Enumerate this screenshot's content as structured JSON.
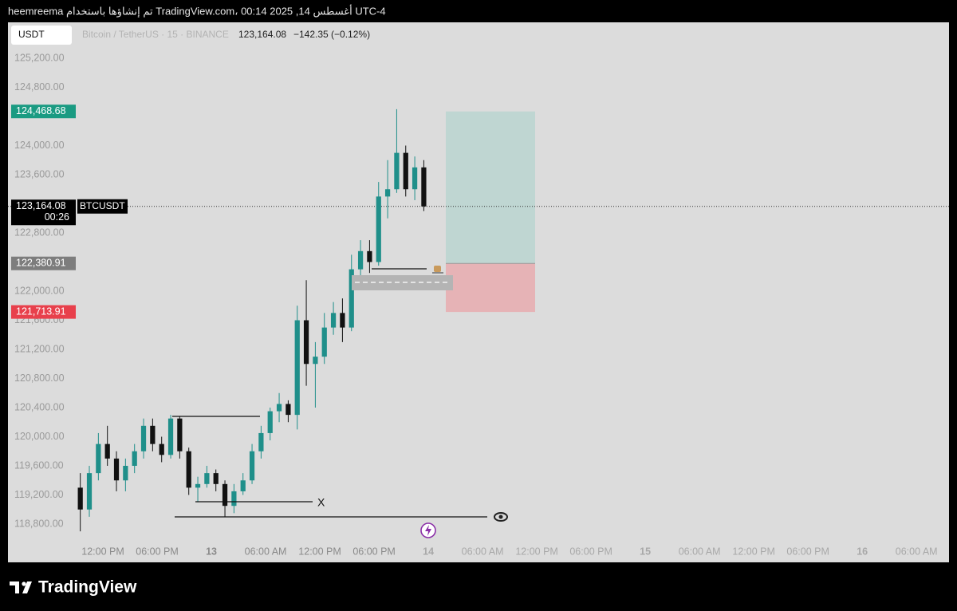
{
  "header": {
    "caption": "heemreema تم إنشاؤها باستخدام TradingView.com، أغسطس 14, 2025 00:14 UTC-4"
  },
  "chart_data": {
    "type": "candlestick",
    "symbol_box": "USDT",
    "legend_title": "Bitcoin / TetherUS · 15 · BINANCE",
    "legend_price": "123,164.08",
    "legend_change": "−142.35 (−0.12%)",
    "series_label": "BTCUSDT",
    "annotation": "X",
    "up_color": "#1f8f8a",
    "down_color": "#111111",
    "x": [
      9.5,
      10.5,
      11.5,
      12.5,
      13.5,
      14.5,
      15.5,
      16.5,
      17.5,
      18.5,
      19.5,
      20.5,
      21.5,
      22.5,
      23.5,
      24.5,
      25.5,
      26.5,
      27.5,
      28.5,
      29.5,
      30.5,
      31.5,
      32.5,
      33.5,
      34.5,
      35.5,
      36.5,
      37.5,
      38.5,
      39.5,
      40.5,
      41.5,
      42.5,
      43.5,
      44.5,
      45.5,
      46.5,
      47.5
    ],
    "open": [
      119300,
      119000,
      119500,
      119900,
      119700,
      119400,
      119600,
      119800,
      120150,
      119900,
      119750,
      120250,
      119800,
      119300,
      119350,
      119500,
      119350,
      119050,
      119250,
      119400,
      119800,
      120050,
      120350,
      120450,
      120300,
      121600,
      121000,
      121100,
      121500,
      121700,
      121500,
      122300,
      122550,
      122400,
      123300,
      123400,
      123900,
      123400,
      123700
    ],
    "high": [
      119500,
      119600,
      120050,
      120150,
      119800,
      119700,
      119900,
      120250,
      120250,
      120000,
      120300,
      120280,
      119850,
      119450,
      119600,
      119550,
      119400,
      119350,
      119500,
      119900,
      120150,
      120400,
      120600,
      120500,
      121800,
      122150,
      121300,
      121700,
      121850,
      121900,
      122500,
      122700,
      122700,
      123500,
      123800,
      124500,
      124000,
      123850,
      123800
    ],
    "low": [
      118700,
      118900,
      119400,
      119600,
      119250,
      119250,
      119500,
      119700,
      119800,
      119650,
      119700,
      119700,
      119200,
      119100,
      119300,
      119250,
      118900,
      118950,
      119200,
      119350,
      119700,
      119950,
      120200,
      120200,
      120100,
      120700,
      120400,
      121000,
      121400,
      121300,
      121450,
      122150,
      122250,
      122350,
      123000,
      123350,
      123300,
      123250,
      123100
    ],
    "close": [
      119000,
      119500,
      119900,
      119700,
      119400,
      119600,
      119800,
      120150,
      119900,
      119750,
      120250,
      119800,
      119300,
      119350,
      119500,
      119350,
      119050,
      119250,
      119400,
      119800,
      120050,
      120350,
      120450,
      120300,
      121600,
      121000,
      121100,
      121500,
      121700,
      121500,
      122300,
      122550,
      122400,
      123300,
      123400,
      123900,
      123400,
      123700,
      123164.08
    ],
    "xlim": [
      1.5,
      105.6
    ],
    "ylim": [
      118548,
      125693
    ],
    "xticks": [
      {
        "value": 12,
        "label": "12:00 PM"
      },
      {
        "value": 18,
        "label": "06:00 PM"
      },
      {
        "value": 24,
        "label": "13"
      },
      {
        "value": 30,
        "label": "06:00 AM"
      },
      {
        "value": 36,
        "label": "12:00 PM"
      },
      {
        "value": 42,
        "label": "06:00 PM"
      },
      {
        "value": 48,
        "label": "14"
      },
      {
        "value": 54,
        "label": "06:00 AM"
      },
      {
        "value": 60,
        "label": "12:00 PM"
      },
      {
        "value": 66,
        "label": "06:00 PM"
      },
      {
        "value": 72,
        "label": "15"
      },
      {
        "value": 78,
        "label": "06:00 AM"
      },
      {
        "value": 84,
        "label": "12:00 PM"
      },
      {
        "value": 90,
        "label": "06:00 PM"
      },
      {
        "value": 96,
        "label": "16"
      },
      {
        "value": 102,
        "label": "06:00 AM"
      }
    ],
    "yticks": [
      {
        "value": 125200,
        "label": "125,200.00"
      },
      {
        "value": 124800,
        "label": "124,800.00"
      },
      {
        "value": 124000,
        "label": "124,000.00"
      },
      {
        "value": 123600,
        "label": "123,600.00"
      },
      {
        "value": 122800,
        "label": "122,800.00"
      },
      {
        "value": 122000,
        "label": "122,000.00"
      },
      {
        "value": 121600,
        "label": "121,600.00"
      },
      {
        "value": 121200,
        "label": "121,200.00"
      },
      {
        "value": 120800,
        "label": "120,800.00"
      },
      {
        "value": 120400,
        "label": "120,400.00"
      },
      {
        "value": 120000,
        "label": "120,000.00"
      },
      {
        "value": 119600,
        "label": "119,600.00"
      },
      {
        "value": 119200,
        "label": "119,200.00"
      },
      {
        "value": 118800,
        "label": "118,800.00"
      }
    ],
    "price_badges": [
      {
        "value": 124468.68,
        "label": "124,468.68",
        "color": "#1a9b82"
      },
      {
        "value": 123164.08,
        "label": "123,164.08",
        "color": "#000000",
        "countdown": "00:26"
      },
      {
        "value": 122380.91,
        "label": "122,380.91",
        "color": "#7d7d7d"
      },
      {
        "value": 121713.91,
        "label": "121,713.91",
        "color": "#e8404c"
      }
    ]
  },
  "footer": {
    "brand": "TradingView"
  }
}
